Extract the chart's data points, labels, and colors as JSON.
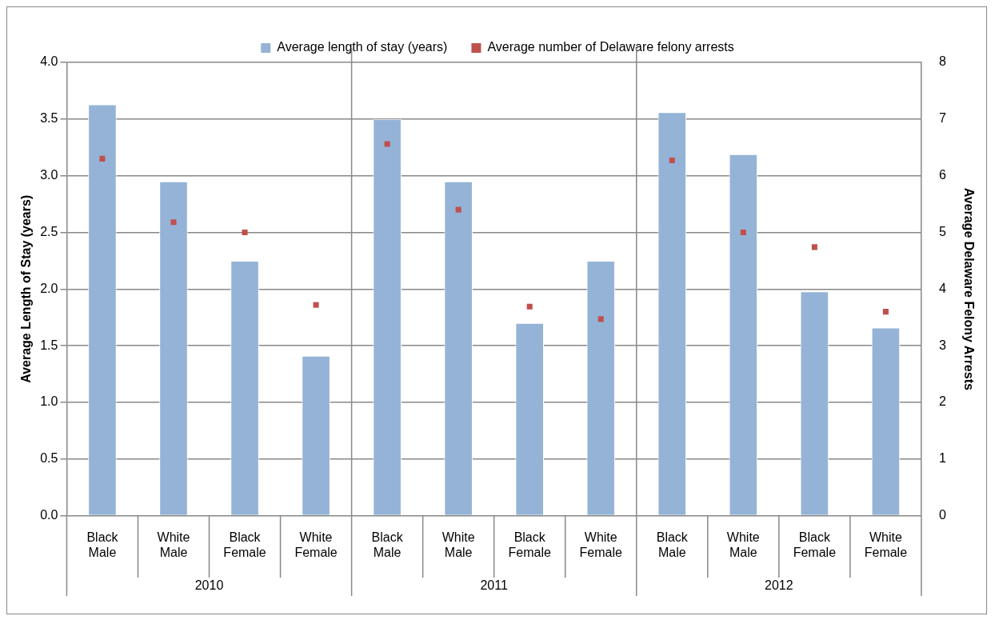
{
  "chart_data": {
    "type": "bar",
    "categories": [
      "Black Male",
      "White Male",
      "Black Female",
      "White Female",
      "Black Male",
      "White Male",
      "Black Female",
      "White Female",
      "Black Male",
      "White Male",
      "Black Female",
      "White Female"
    ],
    "series": [
      {
        "name": "Average length of stay (years)",
        "color": "#95b3d7",
        "values": [
          3.63,
          2.95,
          2.25,
          1.41,
          3.5,
          2.95,
          1.7,
          2.25,
          3.56,
          3.19,
          1.98,
          1.66
        ]
      },
      {
        "name": "Average number of Delaware felony arrests",
        "type": "scatter",
        "axis": "y2",
        "marker": "square",
        "color": "#c0504d",
        "values": [
          6.3,
          5.18,
          5.0,
          3.72,
          6.56,
          5.4,
          3.69,
          3.47,
          6.27,
          5.0,
          4.74,
          3.6
        ]
      }
    ],
    "annotations": [
      "2010",
      "2011",
      "2012"
    ],
    "ylabel": "Average Length of Stay (years)",
    "y2label": "Average Delaware Felony Arrests",
    "ylim": [
      0,
      4
    ],
    "yticks": [
      {
        "value": 0,
        "label": "0.0"
      },
      {
        "value": 0.5,
        "label": "0.5"
      },
      {
        "value": 1,
        "label": "1.0"
      },
      {
        "value": 1.5,
        "label": "1.5"
      },
      {
        "value": 2,
        "label": "2.0"
      },
      {
        "value": 2.5,
        "label": "2.5"
      },
      {
        "value": 3,
        "label": "3.0"
      },
      {
        "value": 3.5,
        "label": "3.5"
      },
      {
        "value": 4,
        "label": "4.0"
      }
    ],
    "y2lim": [
      0,
      8
    ],
    "y2ticks": [
      0,
      1,
      2,
      3,
      4,
      5,
      6,
      7,
      8
    ],
    "grid": "y",
    "legend": "top"
  }
}
